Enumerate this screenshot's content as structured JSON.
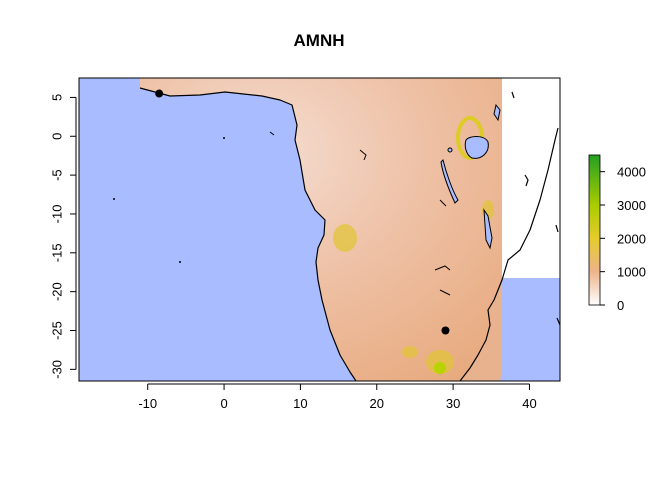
{
  "title": "AMNH",
  "map": {
    "lon_range": [
      -19,
      44
    ],
    "lat_range": [
      -31.5,
      7.5
    ],
    "x_ticks": [
      -10,
      0,
      10,
      20,
      30,
      40
    ],
    "y_ticks": [
      5,
      0,
      -5,
      -10,
      -15,
      -20,
      -25,
      -30
    ],
    "points": [
      {
        "lon": -8.5,
        "lat": 5.5
      },
      {
        "lon": 29.0,
        "lat": -25.0
      }
    ],
    "colors": {
      "ocean": "#a9bcff",
      "no_data": "#ffffff",
      "point": "#000000"
    }
  },
  "legend": {
    "ticks": [
      0,
      1000,
      2000,
      3000,
      4000
    ],
    "max": 4500,
    "stops": [
      {
        "value": 0,
        "color": "#ffffff"
      },
      {
        "value": 1000,
        "color": "#edb48a"
      },
      {
        "value": 2000,
        "color": "#e6cc2c"
      },
      {
        "value": 3000,
        "color": "#aacc00"
      },
      {
        "value": 4500,
        "color": "#22a022"
      }
    ]
  }
}
